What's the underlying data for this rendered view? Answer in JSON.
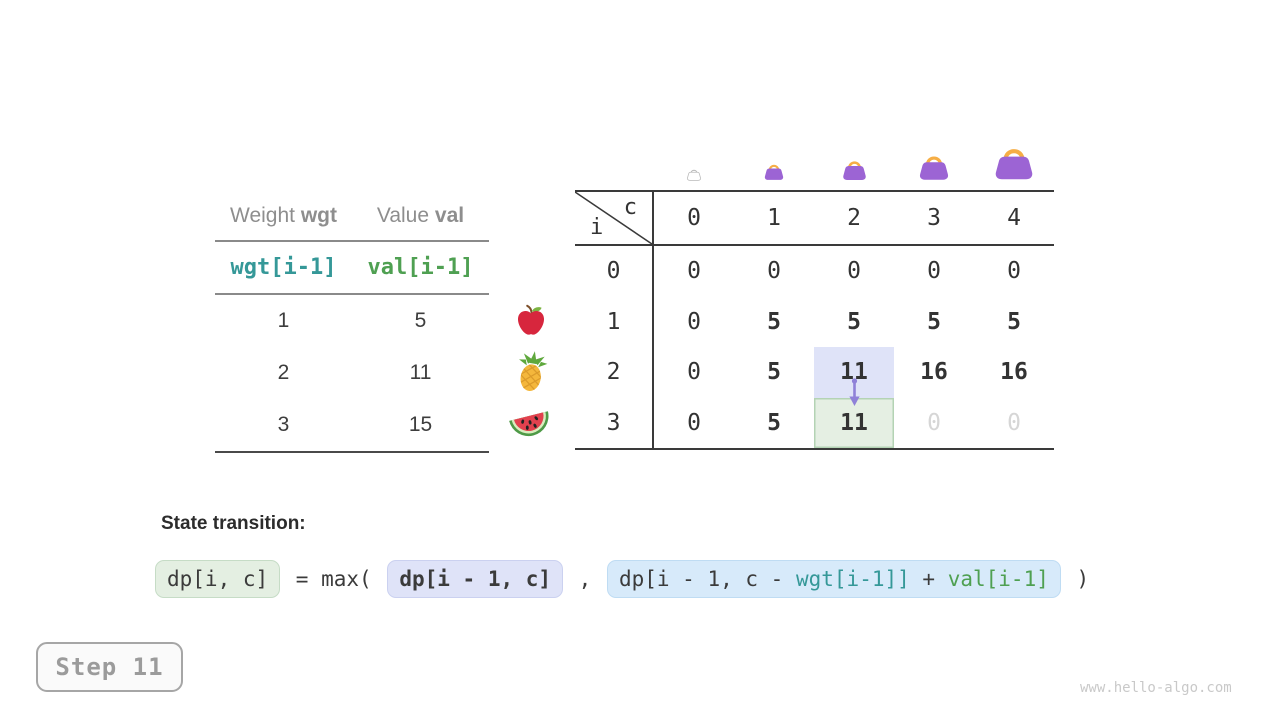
{
  "colors": {
    "teal": "#359898",
    "green": "#4FA052",
    "header_gray": "#8E8E8E",
    "text_dark": "#333333",
    "dim_gray": "#D6D6D6",
    "line_light": "#8A8A8A",
    "line_bottom": "#4A4A4A",
    "line_dark": "#3A3A3A",
    "hl_lavender": "#DFE3F8",
    "hl_green": "#E5EFE3",
    "hl_green_border": "#B4D3B4",
    "box_green": "#E4EFE2",
    "box_green_border": "#C6DCC6",
    "box_lavender": "#DFE3F8",
    "box_lavender_border": "#CBD1F0",
    "box_blue": "#D7EAFA",
    "box_blue_border": "#BFDCF3",
    "arrow": "#8F81D8",
    "bag_body": "#9C64D4",
    "bag_handle": "#F6AE45",
    "bag_outline": "#B9B9B9",
    "step_text": "#9B9B9B",
    "step_border": "#A6A6A6",
    "step_bg": "#FAFAFA",
    "watermark": "#C9C9C9",
    "apple_red": "#D7263D",
    "leaf_green": "#7CB342",
    "stem_brown": "#7D4F2A",
    "pineapple_body": "#F4B73C",
    "pineapple_hatch": "#DB9B2B",
    "pineapple_leaf": "#5FA83D",
    "melon_rind": "#4E9A47",
    "melon_inner": "#D9EDBE",
    "melon_flesh": "#E2414E",
    "melon_seed": "#222222"
  },
  "items_table": {
    "headers": [
      {
        "label": "Weight",
        "key": "wgt"
      },
      {
        "label": "Value",
        "key": "val"
      }
    ],
    "index_row": [
      {
        "text": "wgt[i-1]",
        "color": "teal"
      },
      {
        "text": "val[i-1]",
        "color": "green"
      }
    ],
    "rows": [
      [
        "1",
        "5"
      ],
      [
        "2",
        "11"
      ],
      [
        "3",
        "15"
      ]
    ]
  },
  "icons": {
    "fruits": [
      "apple-icon",
      "pineapple-icon",
      "watermelon-icon"
    ],
    "bags": [
      "bag-outline-icon",
      "bag-icon",
      "bag-icon",
      "bag-icon",
      "bag-icon"
    ],
    "arrow": "arrow-down-icon"
  },
  "dp_table": {
    "corner": {
      "row_var": "i",
      "col_var": "c"
    },
    "col_headers": [
      "0",
      "1",
      "2",
      "3",
      "4"
    ],
    "rows": [
      {
        "header": "0",
        "cells": [
          {
            "v": "0"
          },
          {
            "v": "0"
          },
          {
            "v": "0"
          },
          {
            "v": "0"
          },
          {
            "v": "0"
          }
        ]
      },
      {
        "header": "1",
        "cells": [
          {
            "v": "0"
          },
          {
            "v": "5",
            "bold": true
          },
          {
            "v": "5",
            "bold": true
          },
          {
            "v": "5",
            "bold": true
          },
          {
            "v": "5",
            "bold": true
          }
        ]
      },
      {
        "header": "2",
        "cells": [
          {
            "v": "0"
          },
          {
            "v": "5",
            "bold": true
          },
          {
            "v": "11",
            "bold": true,
            "hl": "lavender"
          },
          {
            "v": "16",
            "bold": true
          },
          {
            "v": "16",
            "bold": true
          }
        ]
      },
      {
        "header": "3",
        "cells": [
          {
            "v": "0"
          },
          {
            "v": "5",
            "bold": true
          },
          {
            "v": "11",
            "bold": true,
            "hl": "green"
          },
          {
            "v": "0",
            "dim": true
          },
          {
            "v": "0",
            "dim": true
          }
        ]
      }
    ]
  },
  "formula": {
    "label": "State transition:",
    "parts": [
      {
        "text": "dp[i, c]",
        "box": "green"
      },
      {
        "text": " = max( "
      },
      {
        "text": "dp[i - 1, c]",
        "box": "lavender",
        "bold": true
      },
      {
        "text": " , "
      },
      {
        "box": "blue",
        "segments": [
          {
            "t": "dp[i - 1, c - ",
            "c": "dark"
          },
          {
            "t": "wgt[i-1]]",
            "c": "teal"
          },
          {
            "t": " + ",
            "c": "dark"
          },
          {
            "t": "val[i-1]",
            "c": "green"
          }
        ]
      },
      {
        "text": " )"
      }
    ]
  },
  "footer": {
    "step_label": "Step 11",
    "watermark": "www.hello-algo.com"
  }
}
